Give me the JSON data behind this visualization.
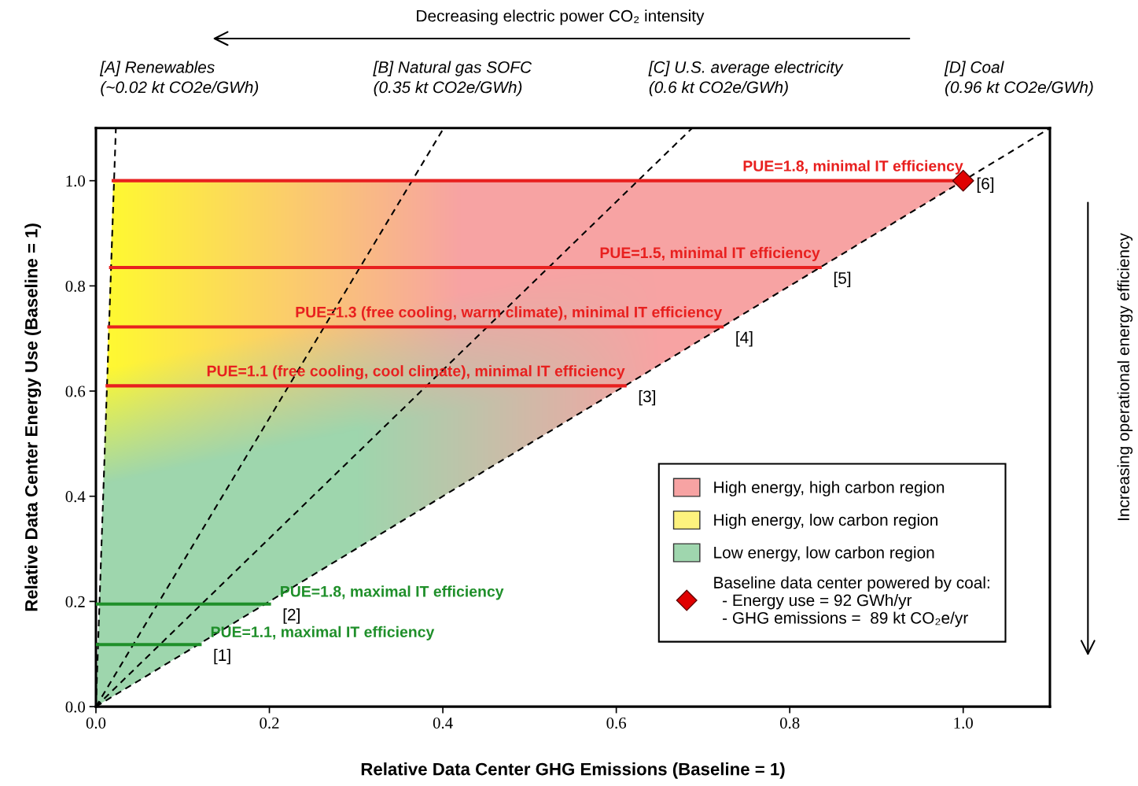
{
  "chart_data": {
    "type": "line",
    "xlabel": "Relative Data Center GHG Emissions (Baseline = 1)",
    "ylabel": "Relative Data Center Energy Use (Baseline = 1)",
    "xlim": [
      0,
      1.1
    ],
    "ylim": [
      0,
      1.1
    ],
    "xticks": [
      {
        "value": 0,
        "label": "0.0"
      },
      0.2,
      0.4,
      0.6,
      0.8,
      {
        "value": 1,
        "label": "1.0"
      }
    ],
    "yticks": [
      {
        "value": 0,
        "label": "0.0"
      },
      0.2,
      0.4,
      0.6,
      0.8,
      {
        "value": 1,
        "label": "1.0"
      }
    ],
    "legend": "bottom right",
    "series": [
      {
        "color": "#000000",
        "line_style": "dashed",
        "x": [
          0,
          0.023
        ],
        "values": [
          0,
          1.1
        ]
      },
      {
        "color": "#000000",
        "line_style": "dashed",
        "x": [
          0,
          0.401
        ],
        "values": [
          0,
          1.1
        ]
      },
      {
        "color": "#000000",
        "line_style": "dashed",
        "x": [
          0,
          0.6875
        ],
        "values": [
          0,
          1.1
        ]
      },
      {
        "color": "#000000",
        "line_style": "dashed",
        "x": [
          0,
          1.1
        ],
        "values": [
          0,
          1.1
        ]
      },
      {
        "name": "PUE=1.8, minimal IT efficiency",
        "color": "#e8201f",
        "x": [
          0.02,
          1.0
        ],
        "values": [
          1.0,
          1.0
        ]
      },
      {
        "name": "PUE=1.5, minimal IT efficiency",
        "color": "#e8201f",
        "x": [
          0.017,
          0.835
        ],
        "values": [
          0.835,
          0.835
        ]
      },
      {
        "name": "PUE=1.3 (free cooling, warm climate), minimal IT efficiency",
        "color": "#e8201f",
        "x": [
          0.015,
          0.722
        ],
        "values": [
          0.722,
          0.722
        ]
      },
      {
        "name": "PUE=1.1 (free cooling, cool climate), minimal IT efficiency",
        "color": "#e8201f",
        "x": [
          0.013,
          0.61
        ],
        "values": [
          0.61,
          0.61
        ]
      },
      {
        "name": "PUE=1.8, maximal IT efficiency",
        "color": "#1f8f2a",
        "x": [
          0.0,
          0.2
        ],
        "values": [
          0.195,
          0.195
        ]
      },
      {
        "name": "PUE=1.1, maximal IT efficiency",
        "color": "#1f8f2a",
        "x": [
          0.0,
          0.12
        ],
        "values": [
          0.118,
          0.118
        ]
      },
      {
        "type": "scatter",
        "name": "Baseline data center powered by coal:\n  - Energy use = 92 GWh/yr\n  - GHG emissions =  89 kt CO₂e/yr",
        "color": "#e00000",
        "marker": "diamond",
        "x": [
          1.0
        ],
        "values": [
          1.0
        ]
      }
    ],
    "annotations": [
      "Decreasing electric power CO₂ intensity",
      "Increasing operational energy efficiency",
      "[A] Renewables\n(~0.02 kt CO2e/GWh)",
      "[B] Natural gas SOFC\n(0.35 kt CO2e/GWh)",
      "[C] U.S. average electricity\n(0.6 kt CO2e/GWh)",
      "[D] Coal\n(0.96 kt CO2e/GWh)",
      "High energy, high carbon region",
      "High energy, low carbon region",
      "Low energy, low carbon region",
      {
        "text": "[6]",
        "x": 1.0,
        "y": 1.0
      },
      {
        "text": "[5]",
        "x": 0.835,
        "y": 0.835
      },
      {
        "text": "[4]",
        "x": 0.722,
        "y": 0.722
      },
      {
        "text": "[3]",
        "x": 0.61,
        "y": 0.61
      },
      {
        "text": "[2]",
        "x": 0.2,
        "y": 0.195
      },
      {
        "text": "[1]",
        "x": 0.12,
        "y": 0.118
      }
    ]
  }
}
